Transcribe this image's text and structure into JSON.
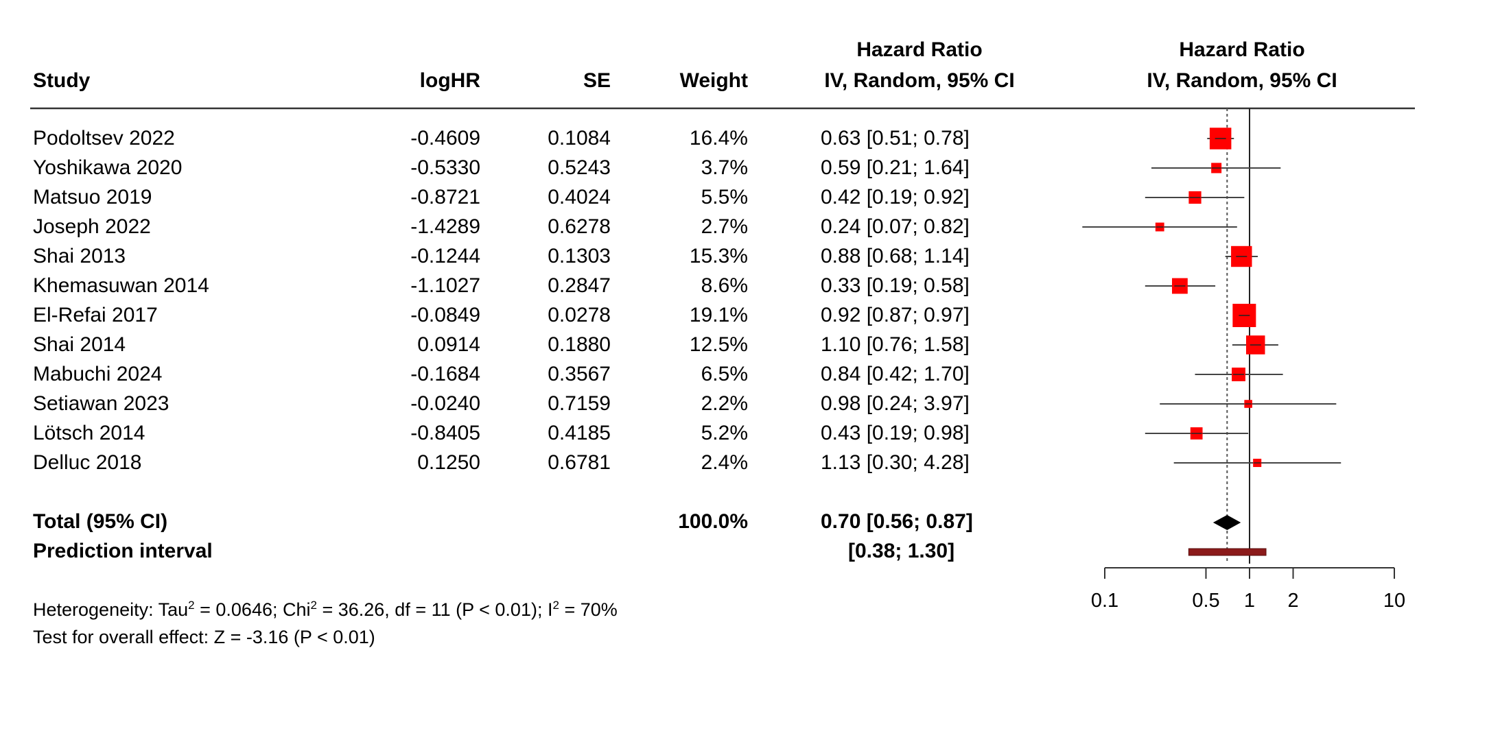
{
  "headers": {
    "study": "Study",
    "loghr": "logHR",
    "se": "SE",
    "weight": "Weight",
    "hr_top": "Hazard Ratio",
    "hr_bottom": "IV, Random, 95% CI",
    "plot_top": "Hazard Ratio",
    "plot_bottom": "IV, Random, 95% CI"
  },
  "studies": [
    {
      "name": "Podoltsev 2022",
      "loghr": "-0.4609",
      "se": "0.1084",
      "weight": "16.4%",
      "ci_text": "0.63 [0.51; 0.78]"
    },
    {
      "name": "Yoshikawa 2020",
      "loghr": "-0.5330",
      "se": "0.5243",
      "weight": "3.7%",
      "ci_text": "0.59 [0.21; 1.64]"
    },
    {
      "name": "Matsuo 2019",
      "loghr": "-0.8721",
      "se": "0.4024",
      "weight": "5.5%",
      "ci_text": "0.42 [0.19; 0.92]"
    },
    {
      "name": "Joseph 2022",
      "loghr": "-1.4289",
      "se": "0.6278",
      "weight": "2.7%",
      "ci_text": "0.24 [0.07; 0.82]"
    },
    {
      "name": "Shai 2013",
      "loghr": "-0.1244",
      "se": "0.1303",
      "weight": "15.3%",
      "ci_text": "0.88 [0.68; 1.14]"
    },
    {
      "name": "Khemasuwan 2014",
      "loghr": "-1.1027",
      "se": "0.2847",
      "weight": "8.6%",
      "ci_text": "0.33 [0.19; 0.58]"
    },
    {
      "name": "El-Refai 2017",
      "loghr": "-0.0849",
      "se": "0.0278",
      "weight": "19.1%",
      "ci_text": "0.92 [0.87; 0.97]"
    },
    {
      "name": "Shai 2014",
      "loghr": "0.0914",
      "se": "0.1880",
      "weight": "12.5%",
      "ci_text": "1.10 [0.76; 1.58]"
    },
    {
      "name": "Mabuchi 2024",
      "loghr": "-0.1684",
      "se": "0.3567",
      "weight": "6.5%",
      "ci_text": "0.84 [0.42; 1.70]"
    },
    {
      "name": "Setiawan 2023",
      "loghr": "-0.0240",
      "se": "0.7159",
      "weight": "2.2%",
      "ci_text": "0.98 [0.24; 3.97]"
    },
    {
      "name": "Lötsch 2014",
      "loghr": "-0.8405",
      "se": "0.4185",
      "weight": "5.2%",
      "ci_text": "0.43 [0.19; 0.98]"
    },
    {
      "name": "Delluc 2018",
      "loghr": "0.1250",
      "se": "0.6781",
      "weight": "2.4%",
      "ci_text": "1.13 [0.30; 4.28]"
    }
  ],
  "total": {
    "label": "Total (95% CI)",
    "weight": "100.0%",
    "ci_text": "0.70 [0.56; 0.87]"
  },
  "prediction": {
    "label": "Prediction interval",
    "ci_text": "[0.38; 1.30]"
  },
  "footer": {
    "het_prefix": "Heterogeneity: Tau",
    "het_sup1": "2",
    "het_mid1": " = 0.0646; Chi",
    "het_sup2": "2",
    "het_mid2": " = 36.26, df = 11 (P < 0.01); I",
    "het_sup3": "2",
    "het_end": " = 70%",
    "overall": "Test for overall effect: Z = -3.16 (P < 0.01)"
  },
  "chart_data": {
    "type": "forest",
    "x_scale": "log",
    "xlim": [
      0.1,
      10
    ],
    "x_ticks": [
      0.1,
      0.5,
      1,
      2,
      10
    ],
    "x_tick_labels": [
      "0.1",
      "0.5",
      "1",
      "2",
      "10"
    ],
    "null_line": 1,
    "summary_line": 0.7,
    "marker_color": "#ff0000",
    "prediction_color": "#8b1a1a",
    "points": [
      {
        "hr": 0.63,
        "lower": 0.51,
        "upper": 0.78,
        "weight": 16.4
      },
      {
        "hr": 0.59,
        "lower": 0.21,
        "upper": 1.64,
        "weight": 3.7
      },
      {
        "hr": 0.42,
        "lower": 0.19,
        "upper": 0.92,
        "weight": 5.5
      },
      {
        "hr": 0.24,
        "lower": 0.07,
        "upper": 0.82,
        "weight": 2.7
      },
      {
        "hr": 0.88,
        "lower": 0.68,
        "upper": 1.14,
        "weight": 15.3
      },
      {
        "hr": 0.33,
        "lower": 0.19,
        "upper": 0.58,
        "weight": 8.6
      },
      {
        "hr": 0.92,
        "lower": 0.87,
        "upper": 0.97,
        "weight": 19.1
      },
      {
        "hr": 1.1,
        "lower": 0.76,
        "upper": 1.58,
        "weight": 12.5
      },
      {
        "hr": 0.84,
        "lower": 0.42,
        "upper": 1.7,
        "weight": 6.5
      },
      {
        "hr": 0.98,
        "lower": 0.24,
        "upper": 3.97,
        "weight": 2.2
      },
      {
        "hr": 0.43,
        "lower": 0.19,
        "upper": 0.98,
        "weight": 5.2
      },
      {
        "hr": 1.13,
        "lower": 0.3,
        "upper": 4.28,
        "weight": 2.4
      }
    ],
    "total": {
      "hr": 0.7,
      "lower": 0.56,
      "upper": 0.87
    },
    "prediction": {
      "lower": 0.38,
      "upper": 1.3
    }
  }
}
